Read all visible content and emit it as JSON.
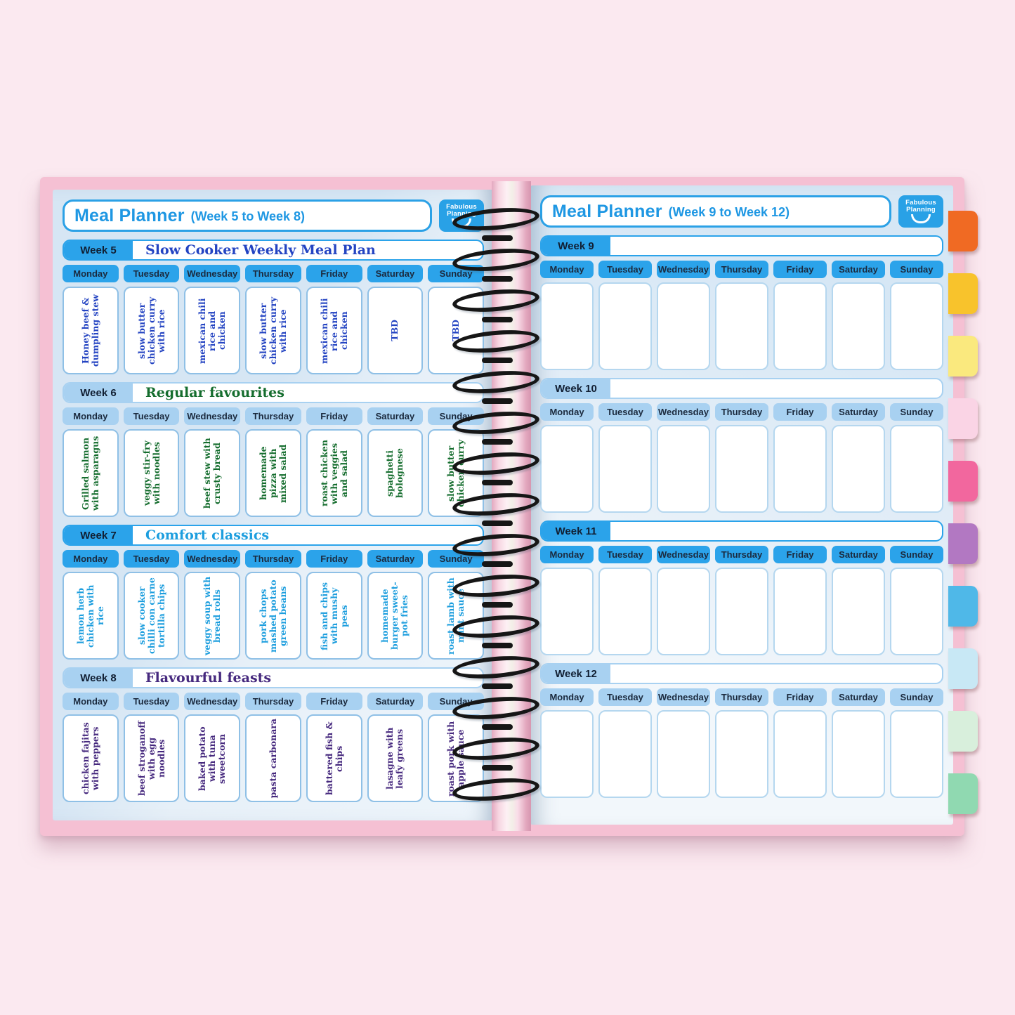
{
  "left_page": {
    "title": "Meal Planner",
    "range": "(Week 5 to Week 8)",
    "logo_line1": "Fabulous",
    "logo_line2": "Planning",
    "days": [
      "Monday",
      "Tuesday",
      "Wednesday",
      "Thursday",
      "Friday",
      "Saturday",
      "Sunday"
    ],
    "weeks": [
      {
        "label": "Week 5",
        "theme": "Slow Cooker Weekly Meal Plan",
        "style": "dark",
        "ink": "#2444c2",
        "meals": [
          "Honey beef & dumpling stew",
          "slow butter chicken curry with rice",
          "mexican chili rice and chicken",
          "slow butter chicken curry with rice",
          "mexican chili rice and chicken",
          "TBD",
          "TBD"
        ]
      },
      {
        "label": "Week 6",
        "theme": "Regular favourites",
        "style": "light",
        "ink": "#156d2e",
        "meals": [
          "Grilled salmon with asparagus",
          "veggy stir-fry with noodles",
          "beef stew with crusty bread",
          "homemade pizza with mixed salad",
          "roast chicken with veggies and salad",
          "spaghetti bolognese",
          "slow butter chicken curry"
        ]
      },
      {
        "label": "Week 7",
        "theme": "Comfort classics",
        "style": "dark",
        "ink": "#1d9ede",
        "meals": [
          "lemon herb chicken with rice",
          "slow cooker chilli con carne tortilla chips",
          "veggy soup with bread rolls",
          "pork chops mashed potato green beans",
          "fish and chips with mushy peas",
          "homemade burger sweet-pot fries",
          "roast lamb with mint sauce"
        ]
      },
      {
        "label": "Week 8",
        "theme": "Flavourful feasts",
        "style": "light",
        "ink": "#46297e",
        "meals": [
          "chicken fajitas with peppers",
          "beef stroganoff with egg noodles",
          "baked potato with tuna sweetcorn",
          "pasta carbonara",
          "battered fish & chips",
          "lasagne with leafy greens",
          "roast pork with apple sauce"
        ]
      }
    ]
  },
  "right_page": {
    "title": "Meal Planner",
    "range": "(Week 9 to Week 12)",
    "logo_line1": "Fabulous",
    "logo_line2": "Planning",
    "days": [
      "Monday",
      "Tuesday",
      "Wednesday",
      "Thursday",
      "Friday",
      "Saturday",
      "Sunday"
    ],
    "weeks": [
      {
        "label": "Week 9",
        "theme": "",
        "style": "dark",
        "ink": "#2444c2",
        "meals": [
          "",
          "",
          "",
          "",
          "",
          "",
          ""
        ]
      },
      {
        "label": "Week 10",
        "theme": "",
        "style": "light",
        "ink": "#2444c2",
        "meals": [
          "",
          "",
          "",
          "",
          "",
          "",
          ""
        ]
      },
      {
        "label": "Week 11",
        "theme": "",
        "style": "dark",
        "ink": "#2444c2",
        "meals": [
          "",
          "",
          "",
          "",
          "",
          "",
          ""
        ]
      },
      {
        "label": "Week 12",
        "theme": "",
        "style": "light",
        "ink": "#2444c2",
        "meals": [
          "",
          "",
          "",
          "",
          "",
          "",
          ""
        ]
      }
    ]
  },
  "tabs": [
    "#f06a23",
    "#f8c32c",
    "#fae97e",
    "#fad4e5",
    "#f2679e",
    "#b278c2",
    "#4fb8e8",
    "#c8e8f5",
    "#d8efdc",
    "#90d9b1"
  ],
  "colors": {
    "background_pink": "#fbe9f0",
    "cover_pink": "#f5c0d3",
    "page_blue": "#d6e6f4",
    "chip_dark_blue": "#2ba3ea",
    "chip_light_blue": "#a8d1f1",
    "title_blue": "#1e97e3",
    "logo_blue": "#29a1e6",
    "spiral_black": "#161616"
  }
}
